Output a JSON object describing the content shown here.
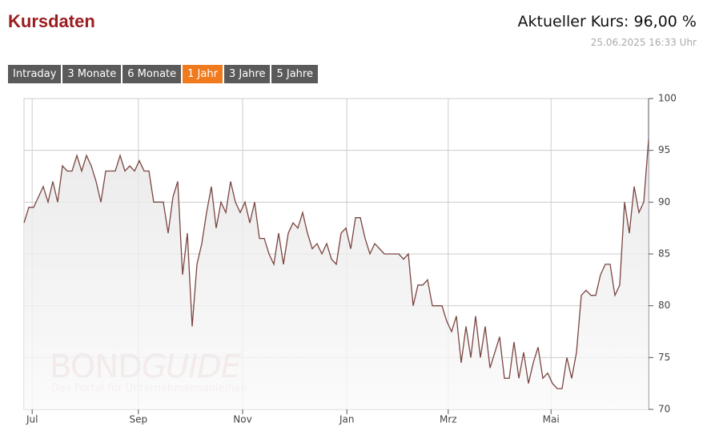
{
  "header": {
    "title": "Kursdaten",
    "price": "Aktueller Kurs: 96,00 %",
    "timestamp": "25.06.2025 16:33 Uhr"
  },
  "tabs": [
    "Intraday",
    "3 Monate",
    "6 Monate",
    "1 Jahr",
    "3 Jahre",
    "5 Jahre"
  ],
  "active_tab": 3,
  "branding": {
    "brand_bold": "BOND",
    "brand_light": "GUIDE",
    "tagline": "Das Portal für Unternehmensanleihen"
  },
  "chart_data": {
    "type": "line",
    "color": "#7a4540",
    "grid": true,
    "values": [
      88,
      89.5,
      89.5,
      90.5,
      91.5,
      90,
      92,
      90,
      93.5,
      93,
      93,
      94.5,
      93,
      94.5,
      93.5,
      92,
      90,
      93,
      93,
      93,
      94.5,
      93,
      93.5,
      93,
      94,
      93,
      93,
      90,
      90,
      90,
      87,
      90.5,
      92,
      83,
      87,
      78,
      84,
      86,
      89,
      91.5,
      87.5,
      90,
      89,
      92,
      90,
      89,
      90,
      88,
      90,
      86.5,
      86.5,
      85,
      84,
      87,
      84,
      87,
      88,
      87.5,
      89,
      87,
      85.5,
      86,
      85,
      86,
      84.5,
      84,
      87,
      87.5,
      85.5,
      88.5,
      88.5,
      86.5,
      85,
      86,
      85.5,
      85,
      85,
      85,
      85,
      84.5,
      85,
      80,
      82,
      82,
      82.5,
      80,
      80,
      80,
      78.5,
      77.5,
      79,
      74.5,
      78,
      75,
      79,
      75,
      78,
      74,
      75.5,
      77,
      73,
      73,
      76.5,
      73,
      75.5,
      72.5,
      74.5,
      76,
      73,
      73.5,
      72.5,
      72,
      72,
      75,
      73,
      75.5,
      81,
      81.5,
      81,
      81,
      83,
      84,
      84,
      81,
      82,
      90,
      87,
      91.5,
      89,
      90,
      96
    ],
    "xlim": [
      0,
      130
    ],
    "xticks": [
      {
        "value": 1.7,
        "label": "Jul"
      },
      {
        "value": 23.8,
        "label": "Sep"
      },
      {
        "value": 45.5,
        "label": "Nov"
      },
      {
        "value": 67.2,
        "label": "Jan"
      },
      {
        "value": 88.3,
        "label": "Mrz"
      },
      {
        "value": 109.7,
        "label": "Mai"
      }
    ],
    "ylim": [
      70,
      100
    ],
    "yticks": [
      70,
      75,
      80,
      85,
      90,
      95,
      100
    ]
  }
}
